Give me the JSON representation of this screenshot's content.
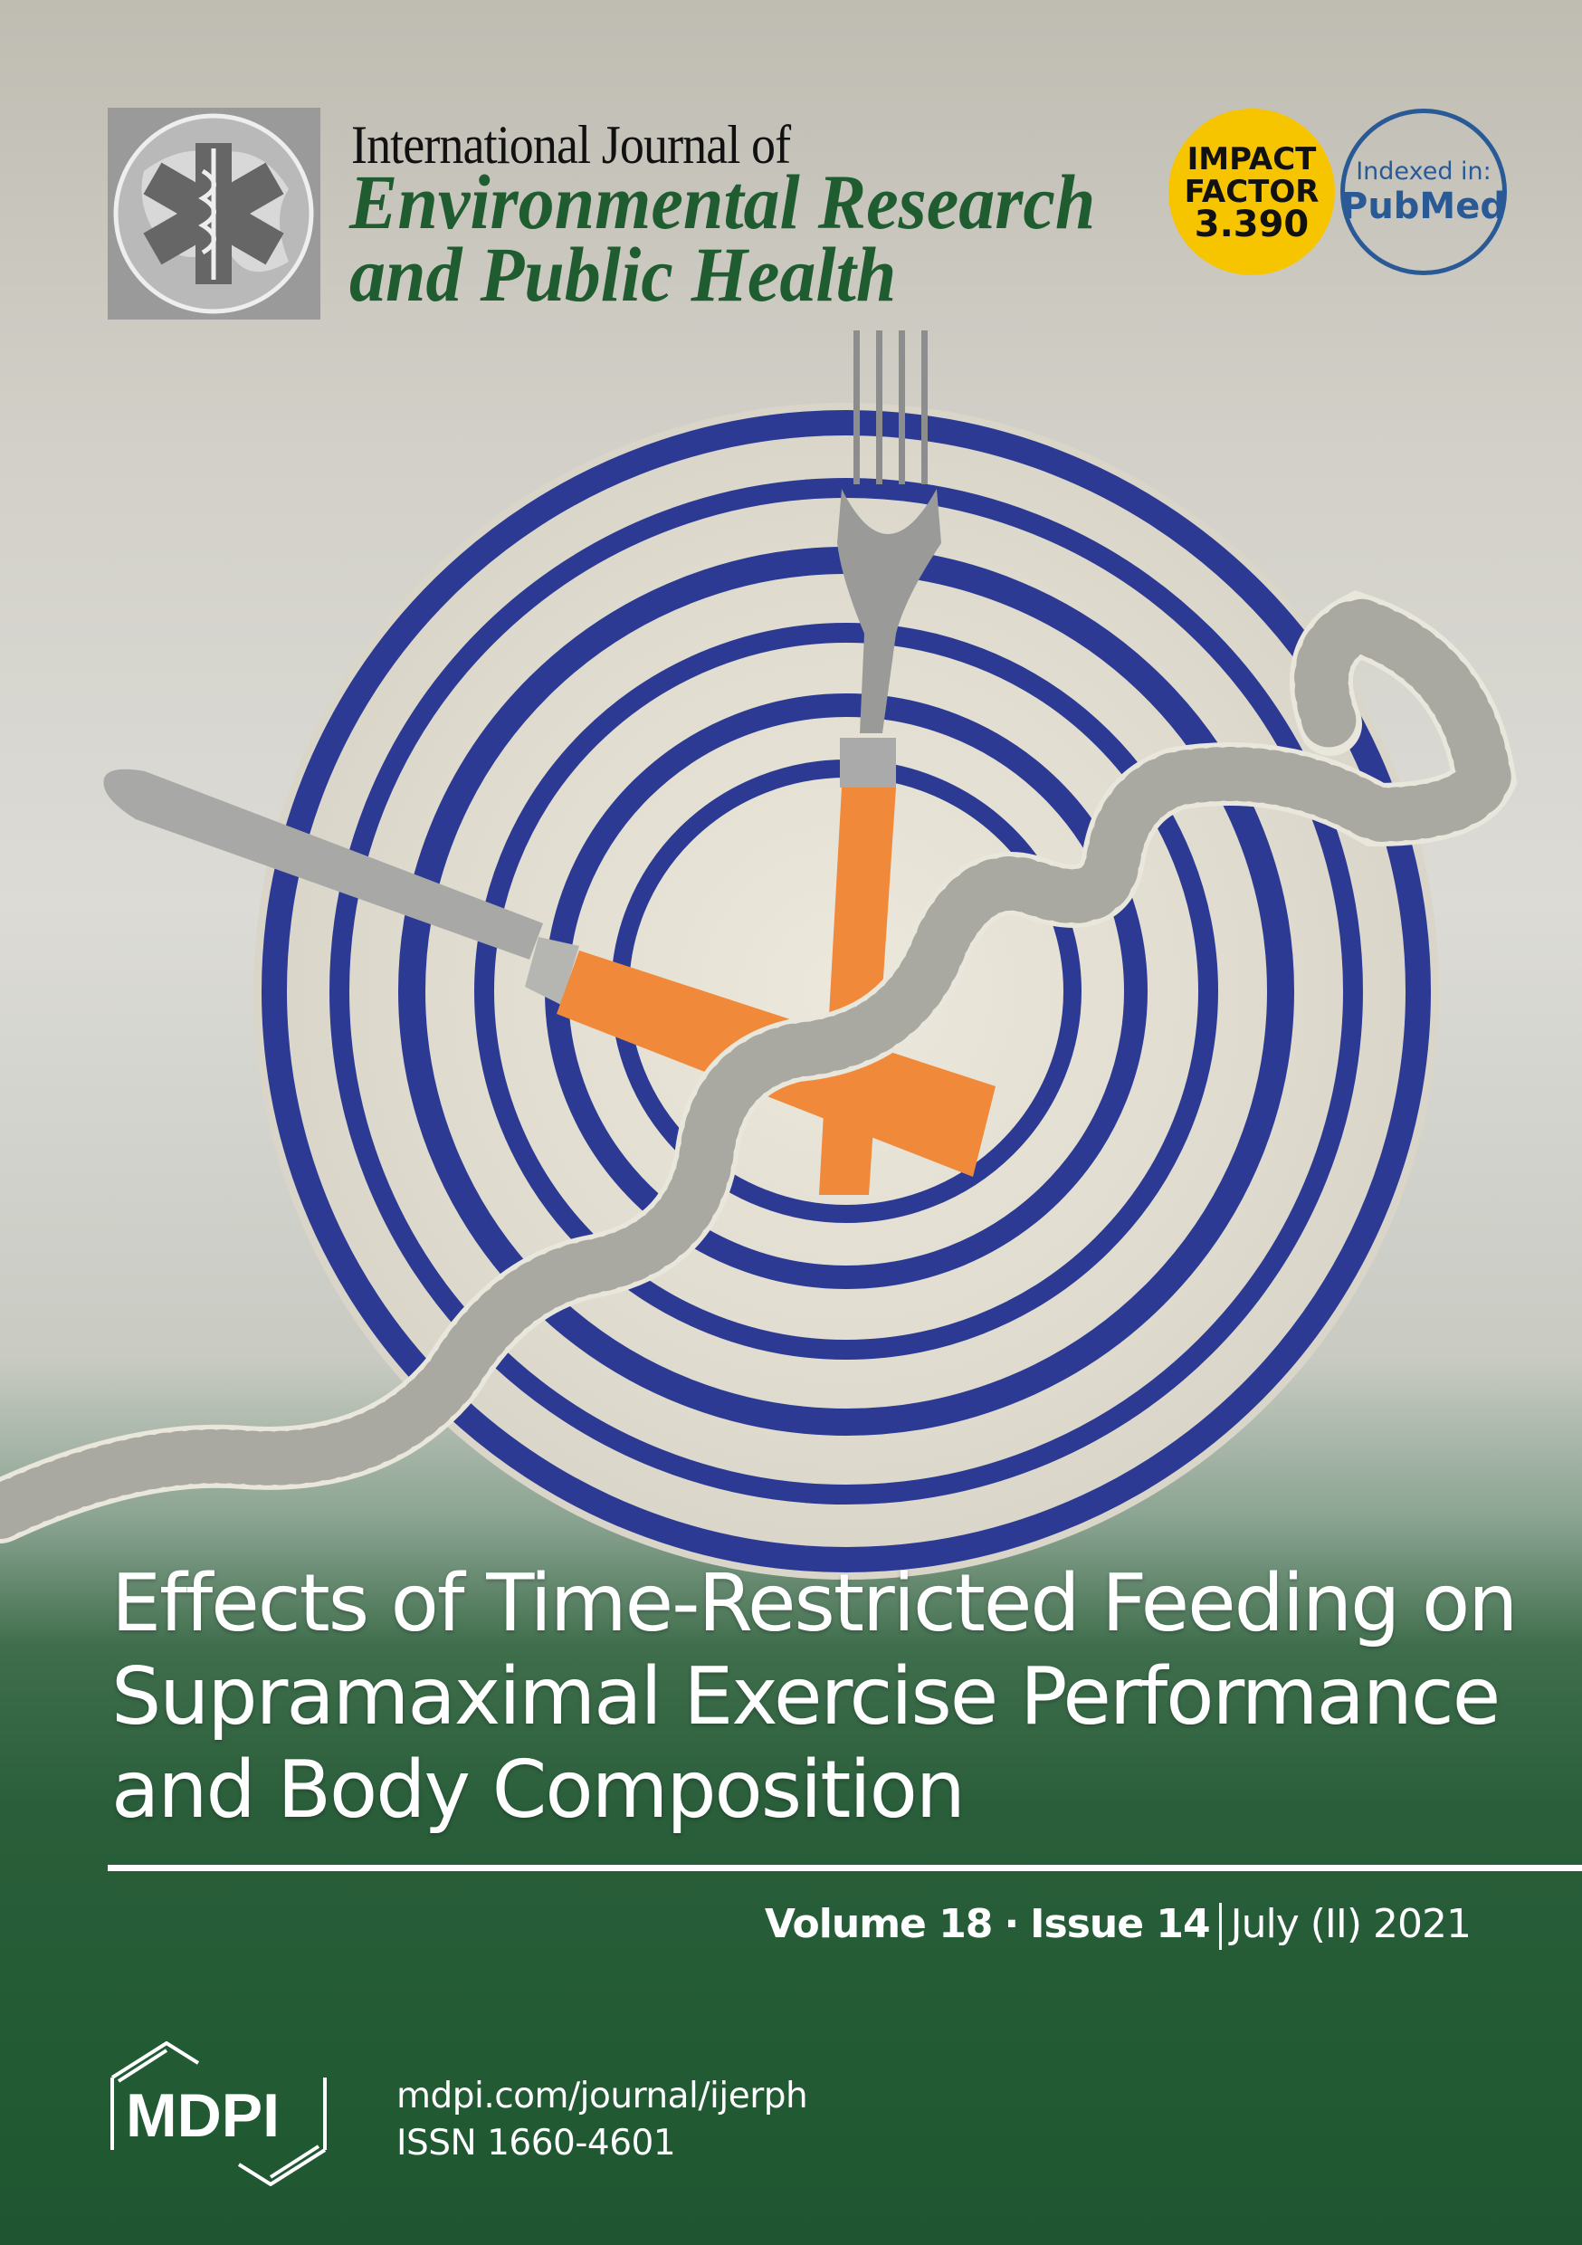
{
  "journal": {
    "line1": "International Journal of",
    "line2": "Environmental Research",
    "line3": "and Public Health"
  },
  "impact_badge": {
    "line1": "IMPACT",
    "line2": "FACTOR",
    "value": "3.390",
    "color": "#f7c500"
  },
  "pubmed_badge": {
    "label": "Indexed in:",
    "name": "PubMed",
    "color": "#2a5a96"
  },
  "article_title": {
    "line1": "Effects of Time-Restricted Feeding on",
    "line2": "Supramaximal Exercise Performance",
    "line3": "and Body Composition"
  },
  "issue": {
    "volume": "Volume 18",
    "dot": "·",
    "issue": "Issue 14",
    "date": "July (II) 2021"
  },
  "publisher": {
    "logo": "MDPI",
    "url": "mdpi.com/journal/ijerph",
    "issn": "ISSN 1660-4601"
  },
  "colors": {
    "brand_green": "#215a33",
    "plate_blue": "#2c3a93",
    "handle_orange": "#f0893a"
  }
}
